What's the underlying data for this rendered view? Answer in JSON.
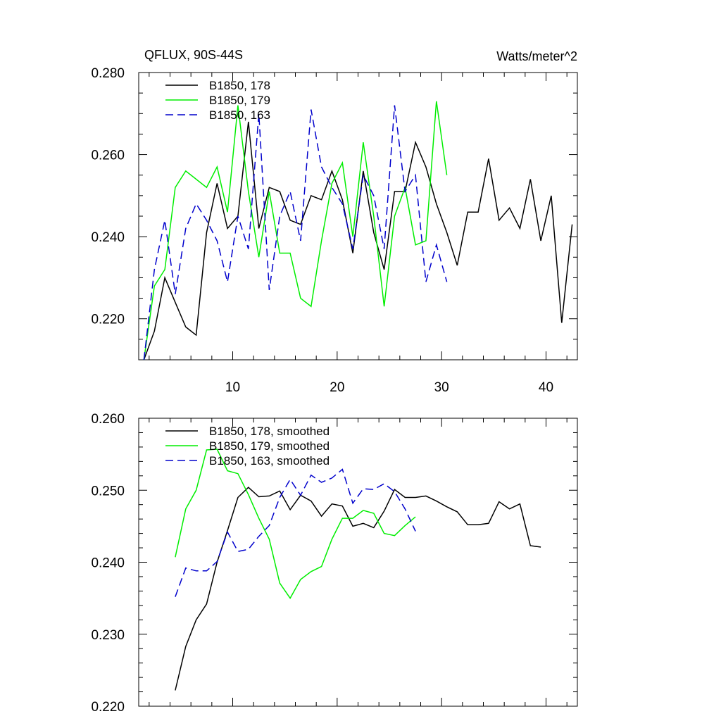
{
  "chart_data": [
    {
      "type": "line",
      "title": "QFLUX, 90S-44S",
      "units": "Watts/meter^2",
      "xlim": [
        1,
        43
      ],
      "ylim": [
        0.21,
        0.28
      ],
      "x_ticks": [
        10,
        20,
        30,
        40
      ],
      "x_tick_labels": [
        "10",
        "20",
        "30",
        "40"
      ],
      "y_ticks": [
        0.22,
        0.24,
        0.26,
        0.28
      ],
      "y_tick_labels": [
        "0.220",
        "0.240",
        "0.260",
        "0.280"
      ],
      "legend_position": "top-left",
      "series": [
        {
          "name": "B1850, 178",
          "color": "#000000",
          "dash": "solid",
          "x": [
            1.5,
            2.5,
            3.5,
            4.5,
            5.5,
            6.5,
            7.5,
            8.5,
            9.5,
            10.5,
            11.5,
            12.5,
            13.5,
            14.5,
            15.5,
            16.5,
            17.5,
            18.5,
            19.5,
            20.5,
            21.5,
            22.5,
            23.5,
            24.5,
            25.5,
            26.5,
            27.5,
            28.5,
            29.5,
            30.5,
            31.5,
            32.5,
            33.5,
            34.5,
            35.5,
            36.5,
            37.5,
            38.5,
            39.5,
            40.5,
            41.5,
            42.5
          ],
          "values": [
            0.21,
            0.217,
            0.23,
            0.224,
            0.218,
            0.216,
            0.241,
            0.253,
            0.242,
            0.245,
            0.268,
            0.242,
            0.252,
            0.251,
            0.244,
            0.243,
            0.25,
            0.249,
            0.256,
            0.249,
            0.236,
            0.256,
            0.241,
            0.232,
            0.251,
            0.251,
            0.263,
            0.257,
            0.248,
            0.241,
            0.233,
            0.246,
            0.246,
            0.259,
            0.244,
            0.247,
            0.242,
            0.254,
            0.239,
            0.25,
            0.219,
            0.243
          ]
        },
        {
          "name": "B1850, 179",
          "color": "#00ee00",
          "dash": "solid",
          "x": [
            1.5,
            2.5,
            3.5,
            4.5,
            5.5,
            6.5,
            7.5,
            8.5,
            9.5,
            10.5,
            11.5,
            12.5,
            13.5,
            14.5,
            15.5,
            16.5,
            17.5,
            18.5,
            19.5,
            20.5,
            21.5,
            22.5,
            23.5,
            24.5,
            25.5,
            26.5,
            27.5,
            28.5,
            29.5,
            30.5
          ],
          "values": [
            0.21,
            0.228,
            0.232,
            0.252,
            0.256,
            0.254,
            0.252,
            0.257,
            0.246,
            0.272,
            0.251,
            0.235,
            0.251,
            0.236,
            0.236,
            0.225,
            0.223,
            0.239,
            0.253,
            0.258,
            0.24,
            0.263,
            0.245,
            0.223,
            0.245,
            0.252,
            0.238,
            0.239,
            0.273,
            0.255
          ]
        },
        {
          "name": "B1850, 163",
          "color": "#0000cc",
          "dash": "dashed",
          "x": [
            1.5,
            2.5,
            3.5,
            4.5,
            5.5,
            6.5,
            7.5,
            8.5,
            9.5,
            10.5,
            11.5,
            12.5,
            13.5,
            14.5,
            15.5,
            16.5,
            17.5,
            18.5,
            19.5,
            20.5,
            21.5,
            22.5,
            23.5,
            24.5,
            25.5,
            26.5,
            27.5,
            28.5,
            29.5,
            30.5
          ],
          "values": [
            0.21,
            0.232,
            0.244,
            0.226,
            0.242,
            0.248,
            0.244,
            0.239,
            0.229,
            0.245,
            0.237,
            0.27,
            0.227,
            0.245,
            0.251,
            0.239,
            0.271,
            0.257,
            0.252,
            0.248,
            0.237,
            0.255,
            0.25,
            0.237,
            0.272,
            0.251,
            0.255,
            0.229,
            0.238,
            0.229
          ]
        }
      ]
    },
    {
      "type": "line",
      "xlim": [
        1,
        43
      ],
      "ylim": [
        0.22,
        0.26
      ],
      "x_ticks": [
        10,
        20,
        30,
        40
      ],
      "y_ticks": [
        0.22,
        0.23,
        0.24,
        0.25,
        0.26
      ],
      "y_tick_labels": [
        "0.220",
        "0.230",
        "0.240",
        "0.250",
        "0.260"
      ],
      "legend_position": "top-left",
      "series": [
        {
          "name": "B1850, 178, smoothed",
          "color": "#000000",
          "dash": "solid",
          "x": [
            4.5,
            5.5,
            6.5,
            7.5,
            8.5,
            9.5,
            10.5,
            11.5,
            12.5,
            13.5,
            14.5,
            15.5,
            16.5,
            17.5,
            18.5,
            19.5,
            20.5,
            21.5,
            22.5,
            23.5,
            24.5,
            25.5,
            26.5,
            27.5,
            28.5,
            29.5,
            30.5,
            31.5,
            32.5,
            33.5,
            34.5,
            35.5,
            36.5,
            37.5,
            38.5,
            39.5
          ],
          "values": [
            0.2222,
            0.2283,
            0.232,
            0.2342,
            0.24,
            0.2444,
            0.249,
            0.2504,
            0.2491,
            0.2492,
            0.2499,
            0.2473,
            0.2493,
            0.2485,
            0.2464,
            0.2481,
            0.2478,
            0.245,
            0.2454,
            0.2448,
            0.2471,
            0.2501,
            0.249,
            0.249,
            0.2492,
            0.2485,
            0.2477,
            0.247,
            0.2452,
            0.2452,
            0.2454,
            0.2484,
            0.2474,
            0.2481,
            0.2423,
            0.2421
          ]
        },
        {
          "name": "B1850, 179, smoothed",
          "color": "#00ee00",
          "dash": "solid",
          "x": [
            4.5,
            5.5,
            6.5,
            7.5,
            8.5,
            9.5,
            10.5,
            11.5,
            12.5,
            13.5,
            14.5,
            15.5,
            16.5,
            17.5,
            18.5,
            19.5,
            20.5,
            21.5,
            22.5,
            23.5,
            24.5,
            25.5,
            26.5,
            27.5
          ],
          "values": [
            0.2407,
            0.2474,
            0.25,
            0.2556,
            0.2557,
            0.2527,
            0.2523,
            0.2494,
            0.2461,
            0.2432,
            0.2371,
            0.235,
            0.2376,
            0.2387,
            0.2394,
            0.2432,
            0.2461,
            0.2461,
            0.2472,
            0.2468,
            0.244,
            0.2437,
            0.2451,
            0.2463
          ]
        },
        {
          "name": "B1850, 163, smoothed",
          "color": "#0000cc",
          "dash": "dashed",
          "x": [
            4.5,
            5.5,
            6.5,
            7.5,
            8.5,
            9.5,
            10.5,
            11.5,
            12.5,
            13.5,
            14.5,
            15.5,
            16.5,
            17.5,
            18.5,
            19.5,
            20.5,
            21.5,
            22.5,
            23.5,
            24.5,
            25.5,
            26.5,
            27.5
          ],
          "values": [
            0.2352,
            0.2392,
            0.2388,
            0.2388,
            0.2401,
            0.2442,
            0.2415,
            0.2418,
            0.2436,
            0.2451,
            0.249,
            0.2515,
            0.2493,
            0.2521,
            0.2511,
            0.2517,
            0.2529,
            0.2482,
            0.2502,
            0.2501,
            0.2509,
            0.2498,
            0.2474,
            0.2443
          ]
        }
      ]
    }
  ]
}
